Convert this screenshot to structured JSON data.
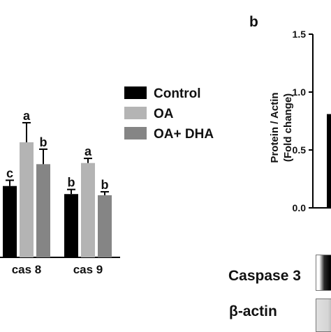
{
  "chart_data": [
    {
      "type": "bar",
      "categories": [
        "cas 8",
        "cas 9"
      ],
      "series": [
        {
          "name": "Control",
          "color": "#000000",
          "values": [
            0.62,
            0.55
          ],
          "errors": [
            0.05,
            0.04
          ],
          "letters": [
            "c",
            "b"
          ]
        },
        {
          "name": "OA",
          "color": "#b4b4b4",
          "values": [
            1.0,
            0.82
          ],
          "errors": [
            0.17,
            0.04
          ],
          "letters": [
            "a",
            "a"
          ]
        },
        {
          "name": "OA+ DHA",
          "color": "#858585",
          "values": [
            0.81,
            0.54
          ],
          "errors": [
            0.13,
            0.03
          ],
          "letters": [
            "b",
            "b"
          ]
        }
      ],
      "legend_position": "right",
      "legend": [
        "Control",
        "OA",
        "OA+ DHA"
      ]
    },
    {
      "type": "bar",
      "panel_label": "b",
      "ylabel": "Protein / Actin\n(Fold change)",
      "ylabel_lines": [
        "Protein / Actin",
        "(Fold change)"
      ],
      "ylim": [
        0,
        1.5
      ],
      "yticks": [
        "0.0",
        "0.5",
        "1.0",
        "1.5"
      ],
      "series": [
        {
          "values": [
            0.81
          ],
          "color": "#000000"
        }
      ]
    }
  ],
  "blot": {
    "labels": [
      "Caspase 3",
      "β-actin"
    ]
  }
}
